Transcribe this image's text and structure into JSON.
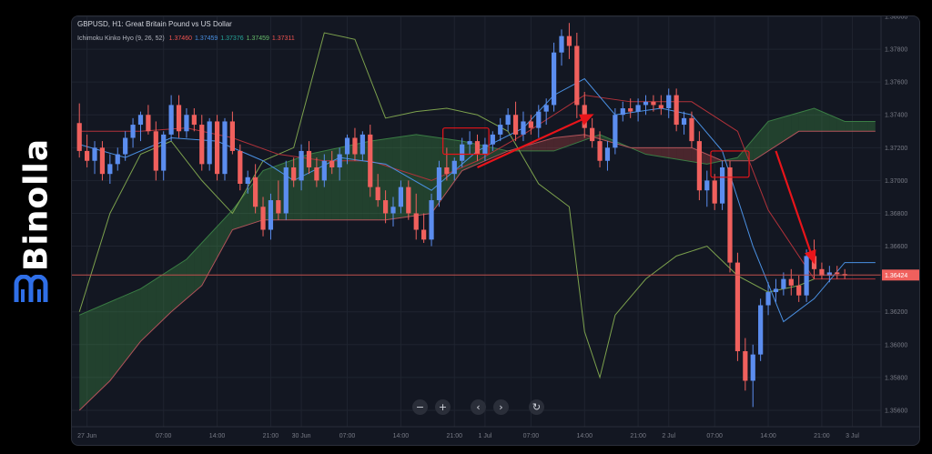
{
  "brand": {
    "name": "Binolla"
  },
  "chart_header": {
    "title": "GBPUSD, H1: Great Britain Pound vs US Dollar",
    "indicator": "Ichimoku Kinko Hyo (9, 26, 52)",
    "values": [
      {
        "text": "1.37460",
        "color": "#ef5350"
      },
      {
        "text": "1.37459",
        "color": "#4a90e2"
      },
      {
        "text": "1.37376",
        "color": "#26a69a"
      },
      {
        "text": "1.37459",
        "color": "#66bb6a"
      },
      {
        "text": "1.37311",
        "color": "#ef5350"
      }
    ]
  },
  "colors": {
    "up": "#5b8def",
    "down": "#f0605d",
    "tenkan": "#4a90e2",
    "kijun": "#b2323a",
    "chikou": "#7ca14d",
    "span_a": "#3a7d44",
    "span_b": "#b2535a",
    "cloud_bull": "rgba(76,175,80,0.28)",
    "cloud_bear": "rgba(239,83,80,0.25)",
    "price_line": "#c0504d",
    "arrow": "#e8141a",
    "grid": "#1f2430"
  },
  "nav_buttons": [
    {
      "name": "zoom-out-button",
      "glyph": "−"
    },
    {
      "name": "zoom-in-button",
      "glyph": "+"
    },
    {
      "name": "scroll-left-button",
      "glyph": "‹"
    },
    {
      "name": "scroll-right-button",
      "glyph": "›"
    },
    {
      "name": "reset-chart-button",
      "glyph": "↻"
    }
  ],
  "chart_data": {
    "type": "candlestick",
    "symbol": "GBPUSD",
    "timeframe": "H1",
    "ylim": [
      1.355,
      1.38
    ],
    "y_ticks": [
      "1.38000",
      "1.37800",
      "1.37600",
      "1.37400",
      "1.37200",
      "1.37000",
      "1.36800",
      "1.36600",
      "1.36200",
      "1.36000",
      "1.35800",
      "1.35600"
    ],
    "current_price": "1.36424",
    "x_ticks": [
      {
        "bar": 1,
        "label": "27 Jun"
      },
      {
        "bar": 11,
        "label": "07:00"
      },
      {
        "bar": 18,
        "label": "14:00"
      },
      {
        "bar": 25,
        "label": "21:00"
      },
      {
        "bar": 29,
        "label": "30 Jun"
      },
      {
        "bar": 35,
        "label": "07:00"
      },
      {
        "bar": 42,
        "label": "14:00"
      },
      {
        "bar": 49,
        "label": "21:00"
      },
      {
        "bar": 53,
        "label": "1 Jul"
      },
      {
        "bar": 59,
        "label": "07:00"
      },
      {
        "bar": 66,
        "label": "14:00"
      },
      {
        "bar": 73,
        "label": "21:00"
      },
      {
        "bar": 77,
        "label": "2 Jul"
      },
      {
        "bar": 83,
        "label": "07:00"
      },
      {
        "bar": 90,
        "label": "14:00"
      },
      {
        "bar": 97,
        "label": "21:00"
      },
      {
        "bar": 101,
        "label": "3 Jul"
      }
    ],
    "bar_count": 105,
    "candles": [
      [
        1.3735,
        1.3747,
        1.3714,
        1.3718
      ],
      [
        1.3718,
        1.3728,
        1.3708,
        1.3712
      ],
      [
        1.3712,
        1.3724,
        1.3704,
        1.372
      ],
      [
        1.372,
        1.3724,
        1.37,
        1.3704
      ],
      [
        1.3704,
        1.3716,
        1.3698,
        1.371
      ],
      [
        1.371,
        1.372,
        1.3706,
        1.3716
      ],
      [
        1.3716,
        1.373,
        1.3712,
        1.3726
      ],
      [
        1.3726,
        1.3738,
        1.372,
        1.3734
      ],
      [
        1.3734,
        1.3742,
        1.3724,
        1.374
      ],
      [
        1.374,
        1.3746,
        1.3728,
        1.373
      ],
      [
        1.373,
        1.3736,
        1.37,
        1.3706
      ],
      [
        1.3706,
        1.373,
        1.37,
        1.3728
      ],
      [
        1.3728,
        1.3752,
        1.3724,
        1.3746
      ],
      [
        1.3746,
        1.3752,
        1.3726,
        1.373
      ],
      [
        1.373,
        1.3744,
        1.3726,
        1.374
      ],
      [
        1.374,
        1.3744,
        1.373,
        1.3734
      ],
      [
        1.3734,
        1.374,
        1.3706,
        1.371
      ],
      [
        1.371,
        1.3738,
        1.3706,
        1.3736
      ],
      [
        1.3736,
        1.374,
        1.37,
        1.3704
      ],
      [
        1.3704,
        1.3738,
        1.37,
        1.3736
      ],
      [
        1.3736,
        1.3742,
        1.3716,
        1.3718
      ],
      [
        1.3718,
        1.3722,
        1.3694,
        1.3698
      ],
      [
        1.3698,
        1.3706,
        1.3692,
        1.3702
      ],
      [
        1.3702,
        1.371,
        1.368,
        1.3684
      ],
      [
        1.3684,
        1.369,
        1.3666,
        1.367
      ],
      [
        1.367,
        1.3692,
        1.3664,
        1.3688
      ],
      [
        1.3688,
        1.37,
        1.3676,
        1.368
      ],
      [
        1.368,
        1.3712,
        1.3676,
        1.3708
      ],
      [
        1.3708,
        1.3714,
        1.3696,
        1.37
      ],
      [
        1.37,
        1.3722,
        1.3694,
        1.3718
      ],
      [
        1.3718,
        1.3724,
        1.3704,
        1.3708
      ],
      [
        1.3708,
        1.3714,
        1.3696,
        1.37
      ],
      [
        1.37,
        1.3716,
        1.3696,
        1.3712
      ],
      [
        1.3712,
        1.3718,
        1.3704,
        1.3708
      ],
      [
        1.3708,
        1.372,
        1.37,
        1.3716
      ],
      [
        1.3716,
        1.3728,
        1.371,
        1.3726
      ],
      [
        1.3726,
        1.3732,
        1.3712,
        1.3716
      ],
      [
        1.3716,
        1.373,
        1.3712,
        1.3728
      ],
      [
        1.3728,
        1.3734,
        1.369,
        1.3696
      ],
      [
        1.3696,
        1.3704,
        1.3684,
        1.3688
      ],
      [
        1.3688,
        1.3694,
        1.3674,
        1.368
      ],
      [
        1.368,
        1.369,
        1.3672,
        1.3684
      ],
      [
        1.3684,
        1.37,
        1.368,
        1.3696
      ],
      [
        1.3696,
        1.37,
        1.3676,
        1.368
      ],
      [
        1.368,
        1.3692,
        1.3664,
        1.367
      ],
      [
        1.367,
        1.368,
        1.3662,
        1.3664
      ],
      [
        1.3664,
        1.3692,
        1.366,
        1.3688
      ],
      [
        1.3688,
        1.3712,
        1.3684,
        1.3708
      ],
      [
        1.3708,
        1.372,
        1.37,
        1.3704
      ],
      [
        1.3704,
        1.3714,
        1.37,
        1.3712
      ],
      [
        1.3712,
        1.3726,
        1.3708,
        1.3722
      ],
      [
        1.3722,
        1.373,
        1.3716,
        1.3724
      ],
      [
        1.3724,
        1.3728,
        1.3712,
        1.3716
      ],
      [
        1.3716,
        1.3726,
        1.3712,
        1.3722
      ],
      [
        1.3722,
        1.373,
        1.3718,
        1.3728
      ],
      [
        1.3728,
        1.3738,
        1.3724,
        1.3734
      ],
      [
        1.3734,
        1.3744,
        1.373,
        1.374
      ],
      [
        1.374,
        1.3748,
        1.3724,
        1.3728
      ],
      [
        1.3728,
        1.3742,
        1.3724,
        1.3736
      ],
      [
        1.3736,
        1.374,
        1.3728,
        1.3732
      ],
      [
        1.3732,
        1.3746,
        1.3726,
        1.3742
      ],
      [
        1.3742,
        1.375,
        1.3734,
        1.3746
      ],
      [
        1.3746,
        1.3784,
        1.3742,
        1.3778
      ],
      [
        1.3778,
        1.3792,
        1.377,
        1.3788
      ],
      [
        1.3788,
        1.3796,
        1.3774,
        1.3782
      ],
      [
        1.3782,
        1.379,
        1.3738,
        1.3746
      ],
      [
        1.3746,
        1.3754,
        1.3726,
        1.3732
      ],
      [
        1.3732,
        1.3738,
        1.372,
        1.3724
      ],
      [
        1.3724,
        1.373,
        1.3708,
        1.3712
      ],
      [
        1.3712,
        1.3724,
        1.3706,
        1.372
      ],
      [
        1.372,
        1.3744,
        1.3716,
        1.374
      ],
      [
        1.374,
        1.3748,
        1.3736,
        1.3744
      ],
      [
        1.3744,
        1.375,
        1.3738,
        1.3742
      ],
      [
        1.3742,
        1.375,
        1.3736,
        1.3746
      ],
      [
        1.3746,
        1.3752,
        1.374,
        1.3748
      ],
      [
        1.3748,
        1.3752,
        1.3742,
        1.3746
      ],
      [
        1.3746,
        1.3752,
        1.374,
        1.3744
      ],
      [
        1.3744,
        1.3756,
        1.3738,
        1.3752
      ],
      [
        1.3752,
        1.3756,
        1.373,
        1.3734
      ],
      [
        1.3734,
        1.3742,
        1.3728,
        1.3738
      ],
      [
        1.3738,
        1.3742,
        1.372,
        1.3724
      ],
      [
        1.3724,
        1.373,
        1.3688,
        1.3694
      ],
      [
        1.3694,
        1.3706,
        1.3684,
        1.37
      ],
      [
        1.37,
        1.3704,
        1.3682,
        1.3686
      ],
      [
        1.3686,
        1.3712,
        1.3682,
        1.3708
      ],
      [
        1.3708,
        1.3712,
        1.3644,
        1.365
      ],
      [
        1.365,
        1.3656,
        1.359,
        1.3596
      ],
      [
        1.3596,
        1.3604,
        1.3572,
        1.3578
      ],
      [
        1.3578,
        1.36,
        1.3562,
        1.3594
      ],
      [
        1.3594,
        1.3628,
        1.359,
        1.3624
      ],
      [
        1.3624,
        1.3638,
        1.3618,
        1.3632
      ],
      [
        1.3632,
        1.364,
        1.3626,
        1.3634
      ],
      [
        1.3634,
        1.3644,
        1.363,
        1.364
      ],
      [
        1.364,
        1.3646,
        1.363,
        1.3636
      ],
      [
        1.3636,
        1.3642,
        1.3626,
        1.363
      ],
      [
        1.363,
        1.3658,
        1.3626,
        1.3654
      ],
      [
        1.3654,
        1.3664,
        1.364,
        1.3646
      ],
      [
        1.3646,
        1.365,
        1.364,
        1.3642
      ],
      [
        1.3642,
        1.3648,
        1.3638,
        1.3644
      ],
      [
        1.3644,
        1.3648,
        1.364,
        1.3643
      ],
      [
        1.3643,
        1.3646,
        1.364,
        1.3642
      ]
    ],
    "tenkan": [
      [
        0,
        1.3722
      ],
      [
        6,
        1.3714
      ],
      [
        12,
        1.3726
      ],
      [
        18,
        1.3724
      ],
      [
        24,
        1.3712
      ],
      [
        28,
        1.37
      ],
      [
        34,
        1.3714
      ],
      [
        40,
        1.371
      ],
      [
        46,
        1.3694
      ],
      [
        52,
        1.3718
      ],
      [
        58,
        1.3732
      ],
      [
        62,
        1.3752
      ],
      [
        66,
        1.3762
      ],
      [
        70,
        1.374
      ],
      [
        76,
        1.3744
      ],
      [
        80,
        1.374
      ],
      [
        84,
        1.3718
      ],
      [
        88,
        1.366
      ],
      [
        92,
        1.3614
      ],
      [
        96,
        1.3628
      ],
      [
        100,
        1.365
      ],
      [
        104,
        1.365
      ]
    ],
    "kijun": [
      [
        0,
        1.373
      ],
      [
        8,
        1.373
      ],
      [
        14,
        1.3732
      ],
      [
        20,
        1.3726
      ],
      [
        26,
        1.3716
      ],
      [
        32,
        1.3712
      ],
      [
        38,
        1.3712
      ],
      [
        46,
        1.37
      ],
      [
        52,
        1.3712
      ],
      [
        58,
        1.3728
      ],
      [
        62,
        1.374
      ],
      [
        66,
        1.3752
      ],
      [
        72,
        1.3748
      ],
      [
        80,
        1.3748
      ],
      [
        86,
        1.373
      ],
      [
        90,
        1.3682
      ],
      [
        96,
        1.364
      ],
      [
        100,
        1.364
      ],
      [
        104,
        1.364
      ]
    ],
    "chikou": [
      [
        0,
        1.362
      ],
      [
        4,
        1.368
      ],
      [
        8,
        1.3716
      ],
      [
        12,
        1.3724
      ],
      [
        16,
        1.37
      ],
      [
        20,
        1.368
      ],
      [
        24,
        1.3712
      ],
      [
        28,
        1.372
      ],
      [
        32,
        1.379
      ],
      [
        36,
        1.3786
      ],
      [
        40,
        1.3738
      ],
      [
        44,
        1.3742
      ],
      [
        48,
        1.3744
      ],
      [
        52,
        1.374
      ],
      [
        56,
        1.373
      ],
      [
        60,
        1.3698
      ],
      [
        64,
        1.3684
      ],
      [
        66,
        1.3608
      ],
      [
        68,
        1.358
      ],
      [
        70,
        1.3618
      ],
      [
        74,
        1.364
      ],
      [
        78,
        1.3654
      ],
      [
        82,
        1.366
      ],
      [
        86,
        1.3642
      ],
      [
        90,
        1.3632
      ],
      [
        94,
        1.3636
      ],
      [
        96,
        1.364
      ]
    ],
    "senkou_a": [
      [
        0,
        1.3618
      ],
      [
        8,
        1.3634
      ],
      [
        14,
        1.3652
      ],
      [
        20,
        1.3682
      ],
      [
        24,
        1.3706
      ],
      [
        30,
        1.3716
      ],
      [
        38,
        1.3724
      ],
      [
        44,
        1.3728
      ],
      [
        50,
        1.3724
      ],
      [
        56,
        1.3718
      ],
      [
        62,
        1.3718
      ],
      [
        68,
        1.3728
      ],
      [
        74,
        1.3716
      ],
      [
        82,
        1.371
      ],
      [
        86,
        1.3714
      ],
      [
        90,
        1.3736
      ],
      [
        96,
        1.3744
      ],
      [
        100,
        1.3736
      ],
      [
        104,
        1.3736
      ]
    ],
    "senkou_b": [
      [
        0,
        1.356
      ],
      [
        4,
        1.3578
      ],
      [
        8,
        1.3602
      ],
      [
        12,
        1.362
      ],
      [
        16,
        1.3636
      ],
      [
        20,
        1.367
      ],
      [
        24,
        1.3676
      ],
      [
        30,
        1.3676
      ],
      [
        40,
        1.3676
      ],
      [
        46,
        1.368
      ],
      [
        50,
        1.3706
      ],
      [
        56,
        1.3718
      ],
      [
        62,
        1.3726
      ],
      [
        66,
        1.3728
      ],
      [
        72,
        1.372
      ],
      [
        80,
        1.372
      ],
      [
        84,
        1.3712
      ],
      [
        88,
        1.3712
      ],
      [
        94,
        1.373
      ],
      [
        104,
        1.373
      ]
    ],
    "highlight_boxes": [
      {
        "bars": [
          48,
          53
        ],
        "ylim": [
          1.3716,
          1.3732
        ]
      },
      {
        "bars": [
          83,
          87
        ],
        "ylim": [
          1.3702,
          1.3718
        ]
      }
    ],
    "arrows": [
      {
        "from": [
          52,
          1.3708
        ],
        "to": [
          67,
          1.374
        ]
      },
      {
        "from": [
          91,
          1.3718
        ],
        "to": [
          96,
          1.365
        ]
      }
    ]
  }
}
